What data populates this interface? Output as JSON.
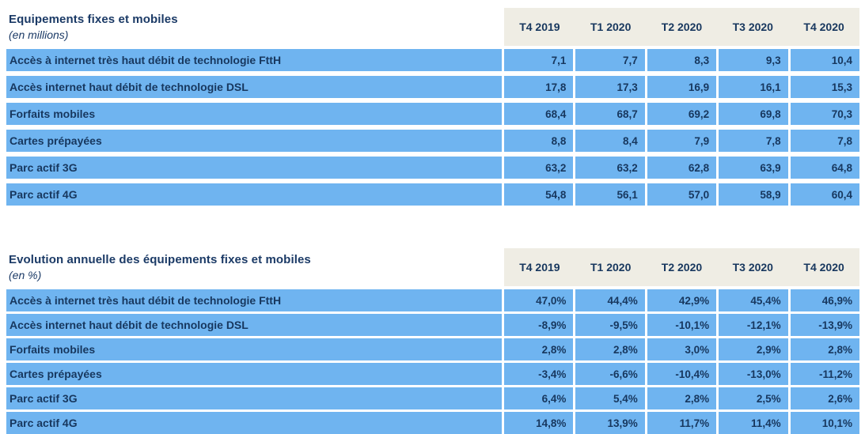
{
  "colors": {
    "row_blue": "#6FB4F0",
    "header_beige": "#EFEDE4",
    "text_navy": "#17375E",
    "separator_white": "#FFFFFF"
  },
  "tables": [
    {
      "title": "Equipements fixes et mobiles",
      "subtitle": "(en millions)",
      "columns": [
        "T4 2019",
        "T1 2020",
        "T2 2020",
        "T3 2020",
        "T4 2020"
      ],
      "rows": [
        {
          "label": "Accès à internet très haut débit de technologie FttH",
          "values": [
            "7,1",
            "7,7",
            "8,3",
            "9,3",
            "10,4"
          ]
        },
        {
          "label": "Accès internet haut débit de technologie DSL",
          "values": [
            "17,8",
            "17,3",
            "16,9",
            "16,1",
            "15,3"
          ]
        },
        {
          "label": "Forfaits mobiles",
          "values": [
            "68,4",
            "68,7",
            "69,2",
            "69,8",
            "70,3"
          ]
        },
        {
          "label": "Cartes prépayées",
          "values": [
            "8,8",
            "8,4",
            "7,9",
            "7,8",
            "7,8"
          ]
        },
        {
          "label": "Parc actif 3G",
          "values": [
            "63,2",
            "63,2",
            "62,8",
            "63,9",
            "64,8"
          ]
        },
        {
          "label": "Parc actif 4G",
          "values": [
            "54,8",
            "56,1",
            "57,0",
            "58,9",
            "60,4"
          ]
        }
      ]
    },
    {
      "title": "Evolution annuelle des équipements fixes et mobiles",
      "subtitle": "(en %)",
      "columns": [
        "T4 2019",
        "T1 2020",
        "T2 2020",
        "T3 2020",
        "T4 2020"
      ],
      "rows": [
        {
          "label": "Accès à internet très haut débit de technologie FttH",
          "values": [
            "47,0%",
            "44,4%",
            "42,9%",
            "45,4%",
            "46,9%"
          ]
        },
        {
          "label": "Accès internet haut débit de technologie DSL",
          "values": [
            "-8,9%",
            "-9,5%",
            "-10,1%",
            "-12,1%",
            "-13,9%"
          ]
        },
        {
          "label": "Forfaits mobiles",
          "values": [
            "2,8%",
            "2,8%",
            "3,0%",
            "2,9%",
            "2,8%"
          ]
        },
        {
          "label": "Cartes prépayées",
          "values": [
            "-3,4%",
            "-6,6%",
            "-10,4%",
            "-13,0%",
            "-11,2%"
          ]
        },
        {
          "label": "Parc actif 3G",
          "values": [
            "6,4%",
            "5,4%",
            "2,8%",
            "2,5%",
            "2,6%"
          ]
        },
        {
          "label": "Parc actif 4G",
          "values": [
            "14,8%",
            "13,9%",
            "11,7%",
            "11,4%",
            "10,1%"
          ]
        }
      ]
    }
  ]
}
